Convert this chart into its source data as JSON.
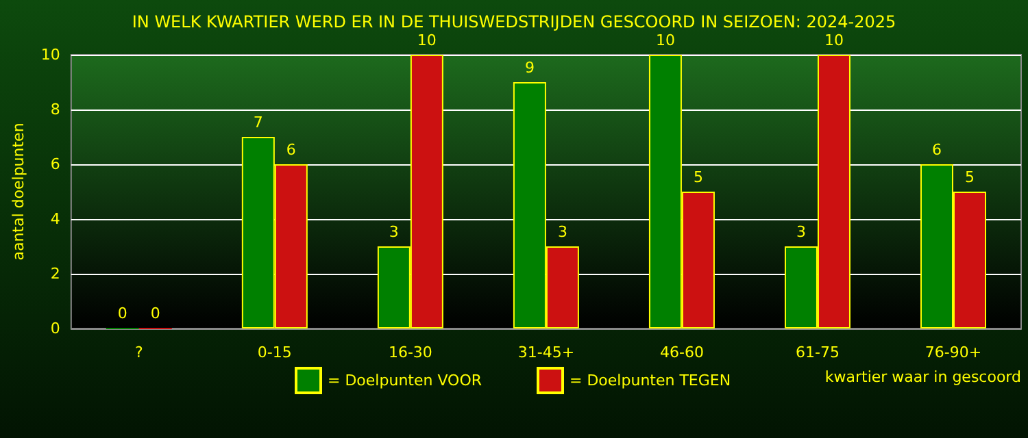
{
  "chart_data": {
    "type": "bar",
    "title": "IN WELK KWARTIER WERD ER IN DE THUISWEDSTRIJDEN GESCOORD IN SEIZOEN: 2024-2025",
    "xlabel": "kwartier waar in gescoord",
    "ylabel": "aantal doelpunten",
    "categories": [
      "?",
      "0-15",
      "16-30",
      "31-45+",
      "46-60",
      "61-75",
      "76-90+"
    ],
    "series": [
      {
        "name": "= Doelpunten VOOR",
        "color": "#008000",
        "values": [
          0,
          7,
          3,
          9,
          10,
          3,
          6
        ]
      },
      {
        "name": "= Doelpunten TEGEN",
        "color": "#cc1111",
        "values": [
          0,
          6,
          10,
          3,
          5,
          10,
          5
        ]
      }
    ],
    "ylim": [
      0,
      10
    ],
    "yticks": [
      0,
      2,
      4,
      6,
      8,
      10
    ],
    "grid": "y",
    "legend": "bottom",
    "data_labels": true
  }
}
